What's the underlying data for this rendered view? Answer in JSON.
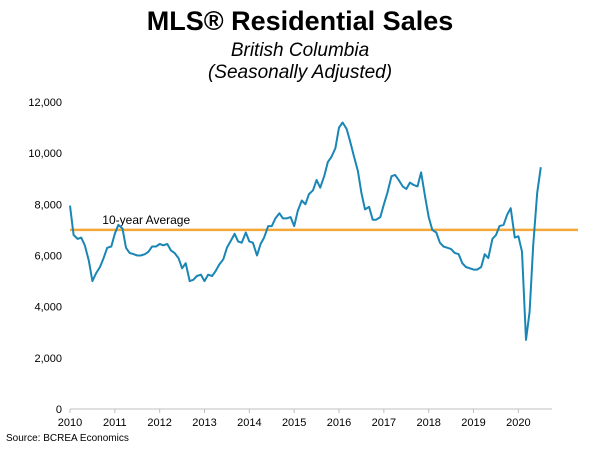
{
  "chart_data": {
    "type": "line",
    "title": "MLS® Residential Sales",
    "subtitle_lines": [
      "British Columbia",
      "(Seasonally Adjusted)"
    ],
    "xlabel": "",
    "ylabel": "",
    "xlim": [
      2010,
      2020.75
    ],
    "ylim": [
      0,
      12000
    ],
    "y_ticks": [
      0,
      2000,
      4000,
      6000,
      8000,
      10000,
      12000
    ],
    "y_tick_labels": [
      "0",
      "2,000",
      "4,000",
      "6,000",
      "8,000",
      "10,000",
      "12,000"
    ],
    "x_ticks": [
      2010,
      2011,
      2012,
      2013,
      2014,
      2015,
      2016,
      2017,
      2018,
      2019,
      2020
    ],
    "x_tick_labels": [
      "2010",
      "2011",
      "2012",
      "2013",
      "2014",
      "2015",
      "2016",
      "2017",
      "2018",
      "2019",
      "2020"
    ],
    "grid": false,
    "series": [
      {
        "color": "#1a86b5",
        "points": [
          [
            2010.0,
            7950
          ],
          [
            2010.08,
            6800
          ],
          [
            2010.17,
            6650
          ],
          [
            2010.25,
            6700
          ],
          [
            2010.33,
            6400
          ],
          [
            2010.42,
            5800
          ],
          [
            2010.5,
            5000
          ],
          [
            2010.58,
            5300
          ],
          [
            2010.67,
            5550
          ],
          [
            2010.75,
            5900
          ],
          [
            2010.83,
            6300
          ],
          [
            2010.92,
            6350
          ],
          [
            2011.0,
            6850
          ],
          [
            2011.08,
            7200
          ],
          [
            2011.17,
            7050
          ],
          [
            2011.25,
            6300
          ],
          [
            2011.33,
            6100
          ],
          [
            2011.42,
            6050
          ],
          [
            2011.5,
            6000
          ],
          [
            2011.58,
            6000
          ],
          [
            2011.67,
            6050
          ],
          [
            2011.75,
            6150
          ],
          [
            2011.83,
            6350
          ],
          [
            2011.92,
            6350
          ],
          [
            2012.0,
            6450
          ],
          [
            2012.08,
            6400
          ],
          [
            2012.17,
            6450
          ],
          [
            2012.25,
            6200
          ],
          [
            2012.33,
            6100
          ],
          [
            2012.42,
            5900
          ],
          [
            2012.5,
            5500
          ],
          [
            2012.58,
            5700
          ],
          [
            2012.67,
            5000
          ],
          [
            2012.75,
            5050
          ],
          [
            2012.83,
            5200
          ],
          [
            2012.92,
            5250
          ],
          [
            2013.0,
            5000
          ],
          [
            2013.08,
            5250
          ],
          [
            2013.17,
            5200
          ],
          [
            2013.25,
            5400
          ],
          [
            2013.33,
            5650
          ],
          [
            2013.42,
            5850
          ],
          [
            2013.5,
            6300
          ],
          [
            2013.58,
            6550
          ],
          [
            2013.67,
            6850
          ],
          [
            2013.75,
            6550
          ],
          [
            2013.83,
            6500
          ],
          [
            2013.92,
            6900
          ],
          [
            2014.0,
            6550
          ],
          [
            2014.08,
            6500
          ],
          [
            2014.17,
            6000
          ],
          [
            2014.25,
            6450
          ],
          [
            2014.33,
            6700
          ],
          [
            2014.42,
            7150
          ],
          [
            2014.5,
            7150
          ],
          [
            2014.58,
            7450
          ],
          [
            2014.67,
            7650
          ],
          [
            2014.75,
            7450
          ],
          [
            2014.83,
            7450
          ],
          [
            2014.92,
            7500
          ],
          [
            2015.0,
            7150
          ],
          [
            2015.08,
            7750
          ],
          [
            2015.17,
            8150
          ],
          [
            2015.25,
            8000
          ],
          [
            2015.33,
            8400
          ],
          [
            2015.42,
            8550
          ],
          [
            2015.5,
            8950
          ],
          [
            2015.58,
            8650
          ],
          [
            2015.67,
            9100
          ],
          [
            2015.75,
            9650
          ],
          [
            2015.83,
            9850
          ],
          [
            2015.92,
            10200
          ],
          [
            2016.0,
            11000
          ],
          [
            2016.08,
            11200
          ],
          [
            2016.17,
            10950
          ],
          [
            2016.25,
            10450
          ],
          [
            2016.33,
            9900
          ],
          [
            2016.42,
            9300
          ],
          [
            2016.5,
            8450
          ],
          [
            2016.58,
            7800
          ],
          [
            2016.67,
            7900
          ],
          [
            2016.75,
            7400
          ],
          [
            2016.83,
            7400
          ],
          [
            2016.92,
            7500
          ],
          [
            2017.0,
            8000
          ],
          [
            2017.08,
            8450
          ],
          [
            2017.17,
            9100
          ],
          [
            2017.25,
            9150
          ],
          [
            2017.33,
            8950
          ],
          [
            2017.42,
            8700
          ],
          [
            2017.5,
            8600
          ],
          [
            2017.58,
            8850
          ],
          [
            2017.67,
            8750
          ],
          [
            2017.75,
            8700
          ],
          [
            2017.83,
            9250
          ],
          [
            2017.92,
            8300
          ],
          [
            2018.0,
            7500
          ],
          [
            2018.08,
            7000
          ],
          [
            2018.17,
            6900
          ],
          [
            2018.25,
            6500
          ],
          [
            2018.33,
            6350
          ],
          [
            2018.42,
            6300
          ],
          [
            2018.5,
            6250
          ],
          [
            2018.58,
            6100
          ],
          [
            2018.67,
            6050
          ],
          [
            2018.75,
            5700
          ],
          [
            2018.83,
            5550
          ],
          [
            2018.92,
            5500
          ],
          [
            2019.0,
            5450
          ],
          [
            2019.08,
            5450
          ],
          [
            2019.17,
            5550
          ],
          [
            2019.25,
            6050
          ],
          [
            2019.33,
            5900
          ],
          [
            2019.42,
            6650
          ],
          [
            2019.5,
            6800
          ],
          [
            2019.58,
            7150
          ],
          [
            2019.67,
            7200
          ],
          [
            2019.75,
            7600
          ],
          [
            2019.83,
            7850
          ],
          [
            2019.92,
            6700
          ],
          [
            2020.0,
            6750
          ],
          [
            2020.08,
            6150
          ],
          [
            2020.17,
            2700
          ],
          [
            2020.25,
            3800
          ],
          [
            2020.33,
            6400
          ],
          [
            2020.42,
            8450
          ],
          [
            2020.5,
            9450
          ]
        ]
      }
    ],
    "reference_line": {
      "label": "10-year Average",
      "value": 7000,
      "color": "#f2a83a"
    },
    "source": "Source: BCREA Economics"
  }
}
